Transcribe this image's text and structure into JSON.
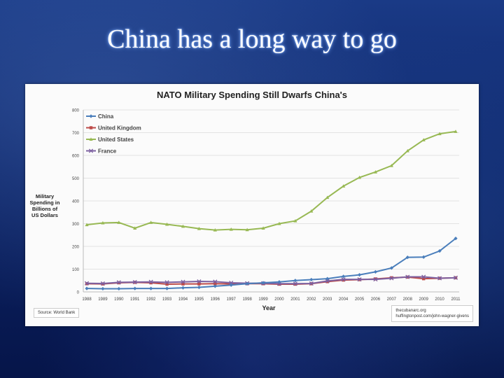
{
  "slide": {
    "title": "China has a long way to go"
  },
  "source_note": "Source: World Bank",
  "credits": [
    "thecubanarc.org",
    "huffingtonpost.com/john-wagner-givens"
  ],
  "chart_data": {
    "type": "line",
    "title": "NATO Military Spending Still Dwarfs China's",
    "xlabel": "Year",
    "ylabel": "Military Spending in Billions of US Dollars",
    "ylim": [
      0,
      800
    ],
    "yticks": [
      "0",
      "100",
      "200",
      "300",
      "400",
      "500",
      "600",
      "700",
      "800"
    ],
    "grid": true,
    "legend": "top-left",
    "categories": [
      "1988",
      "1989",
      "1990",
      "1991",
      "1992",
      "1993",
      "1994",
      "1995",
      "1996",
      "1997",
      "1998",
      "1999",
      "2000",
      "2001",
      "2002",
      "2003",
      "2004",
      "2005",
      "2006",
      "2007",
      "2008",
      "2009",
      "2010",
      "2011"
    ],
    "series": [
      {
        "name": "China",
        "color": "#4a7ebb",
        "marker": "diamond",
        "values": [
          15,
          14,
          14,
          15,
          15,
          15,
          18,
          20,
          25,
          30,
          36,
          40,
          44,
          50,
          54,
          58,
          68,
          75,
          88,
          105,
          152,
          153,
          180,
          235
        ]
      },
      {
        "name": "United Kingdom",
        "color": "#be4b48",
        "marker": "square",
        "values": [
          36,
          35,
          40,
          42,
          40,
          34,
          35,
          35,
          36,
          35,
          36,
          36,
          34,
          34,
          36,
          45,
          52,
          54,
          57,
          62,
          65,
          58,
          60,
          62
        ]
      },
      {
        "name": "United States",
        "color": "#98b954",
        "marker": "triangle",
        "values": [
          295,
          303,
          305,
          280,
          305,
          297,
          288,
          278,
          272,
          275,
          273,
          280,
          300,
          312,
          355,
          415,
          465,
          503,
          527,
          555,
          620,
          668,
          695,
          705
        ]
      },
      {
        "name": "France",
        "color": "#7d60a0",
        "marker": "x",
        "values": [
          38,
          37,
          42,
          43,
          44,
          42,
          44,
          46,
          45,
          40,
          38,
          38,
          36,
          36,
          37,
          48,
          55,
          55,
          55,
          60,
          66,
          66,
          60,
          62
        ]
      }
    ]
  }
}
